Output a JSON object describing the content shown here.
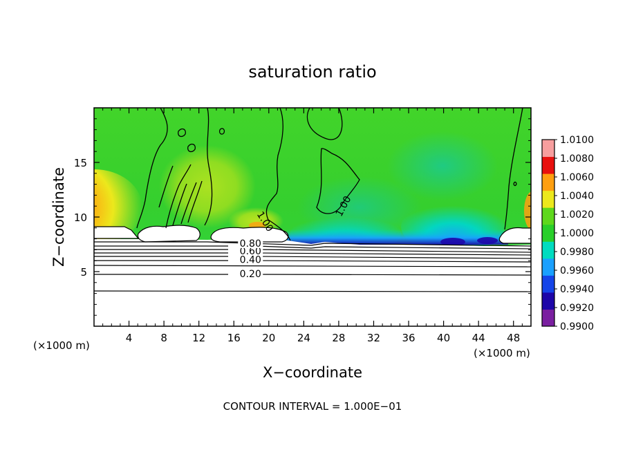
{
  "chart_data": {
    "type": "heatmap",
    "title": "saturation ratio",
    "xlabel": "X−coordinate",
    "ylabel": "Z−coordinate",
    "x_unit_left": "(×1000 m)",
    "x_unit_right": "(×1000 m)",
    "footer": "CONTOUR INTERVAL = 1.000E−01",
    "xlim": [
      0,
      50
    ],
    "ylim": [
      0,
      20
    ],
    "x_ticks": [
      4,
      8,
      12,
      16,
      20,
      24,
      28,
      32,
      36,
      40,
      44,
      48
    ],
    "x_tick_labels": [
      "4",
      "8",
      "12",
      "16",
      "20",
      "24",
      "28",
      "32",
      "36",
      "40",
      "44",
      "48"
    ],
    "y_ticks": [
      5,
      10,
      15
    ],
    "y_tick_labels": [
      "5",
      "10",
      "15"
    ],
    "colorbar": {
      "min": 0.99,
      "max": 1.01,
      "labels": [
        "1.0100",
        "1.0080",
        "1.0060",
        "1.0040",
        "1.0020",
        "1.0000",
        "0.9980",
        "0.9960",
        "0.9940",
        "0.9920",
        "0.9900"
      ],
      "colors": [
        "#7a1fa0",
        "#1d06a8",
        "#1544e8",
        "#1aa0ff",
        "#00dcc0",
        "#29cf2a",
        "#5ed81c",
        "#ece81c",
        "#ff9f10",
        "#e8100e",
        "#f79e9e"
      ]
    },
    "contour_labels": [
      {
        "text": "0.20",
        "x": 17.9,
        "z": 4.8
      },
      {
        "text": "0.40",
        "x": 17.9,
        "z": 6.1
      },
      {
        "text": "0.60",
        "x": 17.9,
        "z": 6.9
      },
      {
        "text": "0.80",
        "x": 17.9,
        "z": 7.6
      },
      {
        "text": "1.00",
        "x": 19.6,
        "z": 9.6
      },
      {
        "text": "1.00",
        "x": 28.5,
        "z": 11.0
      }
    ],
    "cloud_base_z": 8.0
  }
}
